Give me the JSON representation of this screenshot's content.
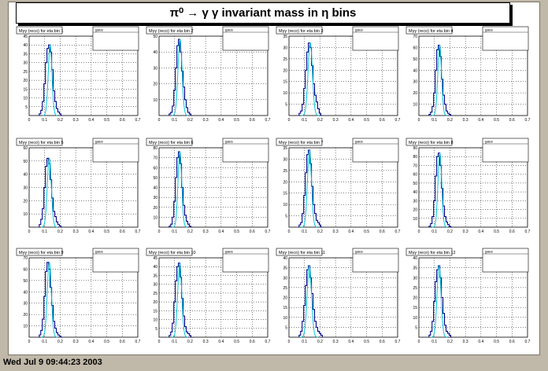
{
  "window": {
    "title": "π⁰ → γ γ invariant mass in η bins",
    "timestamp": "Wed Jul  9 09:44:23 2003",
    "background_color": "#c0b8a8",
    "canvas_color": "#ffffff"
  },
  "colors": {
    "fit_line": "#00c8d8",
    "hist_line": "#00008b",
    "grid": "#000000"
  },
  "chart_data": [
    {
      "type": "line",
      "title": "Mγγ (reco) for eta bin 1",
      "stats_name": "gaus",
      "ylim": [
        0,
        45
      ],
      "xlim": [
        0,
        0.7
      ],
      "yticks": [
        0,
        5,
        10,
        15,
        20,
        25,
        30,
        35,
        40,
        45
      ],
      "xticks": [
        0,
        0.1,
        0.2,
        0.3,
        0.4,
        0.5,
        0.6,
        0.7
      ],
      "peak": 40,
      "mean": 0.135,
      "sigma": 0.012,
      "hist_x": [
        0.07,
        0.08,
        0.09,
        0.1,
        0.11,
        0.12,
        0.13,
        0.14,
        0.15,
        0.16,
        0.17,
        0.18,
        0.19,
        0.2,
        0.21
      ],
      "hist_y": [
        1,
        3,
        8,
        18,
        30,
        38,
        40,
        36,
        26,
        14,
        8,
        4,
        2,
        1,
        0
      ]
    },
    {
      "type": "line",
      "title": "Mγγ (reco) for eta bin 2",
      "stats_name": "gaus",
      "ylim": [
        0,
        50
      ],
      "xlim": [
        0,
        0.7
      ],
      "yticks": [
        0,
        10,
        20,
        30,
        40,
        50
      ],
      "xticks": [
        0,
        0.1,
        0.2,
        0.3,
        0.4,
        0.5,
        0.6,
        0.7
      ],
      "peak": 48,
      "mean": 0.135,
      "sigma": 0.013,
      "hist_x": [
        0.07,
        0.08,
        0.09,
        0.1,
        0.11,
        0.12,
        0.13,
        0.14,
        0.15,
        0.16,
        0.17,
        0.18,
        0.19,
        0.2,
        0.21
      ],
      "hist_y": [
        1,
        2,
        6,
        16,
        30,
        44,
        48,
        40,
        28,
        18,
        10,
        5,
        2,
        1,
        0
      ]
    },
    {
      "type": "line",
      "title": "Mγγ (reco) for eta bin 3",
      "stats_name": "gaus",
      "ylim": [
        0,
        35
      ],
      "xlim": [
        0,
        0.7
      ],
      "yticks": [
        0,
        5,
        10,
        15,
        20,
        25,
        30,
        35
      ],
      "xticks": [
        0,
        0.1,
        0.2,
        0.3,
        0.4,
        0.5,
        0.6,
        0.7
      ],
      "peak": 32,
      "mean": 0.137,
      "sigma": 0.014,
      "hist_x": [
        0.07,
        0.08,
        0.09,
        0.1,
        0.11,
        0.12,
        0.13,
        0.14,
        0.15,
        0.16,
        0.17,
        0.18,
        0.19,
        0.2,
        0.21
      ],
      "hist_y": [
        1,
        2,
        5,
        12,
        20,
        28,
        32,
        30,
        22,
        14,
        9,
        6,
        3,
        1,
        0
      ]
    },
    {
      "type": "line",
      "title": "Mγγ (reco) for eta bin 4",
      "stats_name": "gaus",
      "ylim": [
        0,
        70
      ],
      "xlim": [
        0,
        0.7
      ],
      "yticks": [
        0,
        10,
        20,
        30,
        40,
        50,
        60,
        70
      ],
      "xticks": [
        0,
        0.1,
        0.2,
        0.3,
        0.4,
        0.5,
        0.6,
        0.7
      ],
      "peak": 62,
      "mean": 0.134,
      "sigma": 0.012,
      "hist_x": [
        0.07,
        0.08,
        0.09,
        0.1,
        0.11,
        0.12,
        0.13,
        0.14,
        0.15,
        0.16,
        0.17,
        0.18,
        0.19,
        0.2,
        0.21
      ],
      "hist_y": [
        1,
        3,
        8,
        20,
        40,
        58,
        62,
        52,
        32,
        18,
        10,
        4,
        2,
        1,
        0
      ]
    },
    {
      "type": "line",
      "title": "Mγγ (reco) for eta bin 5",
      "stats_name": "gaus",
      "ylim": [
        0,
        60
      ],
      "xlim": [
        0,
        0.7
      ],
      "yticks": [
        0,
        10,
        20,
        30,
        40,
        50,
        60
      ],
      "xticks": [
        0,
        0.1,
        0.2,
        0.3,
        0.4,
        0.5,
        0.6,
        0.7
      ],
      "peak": 52,
      "mean": 0.13,
      "sigma": 0.013,
      "hist_x": [
        0.07,
        0.08,
        0.09,
        0.1,
        0.11,
        0.12,
        0.13,
        0.14,
        0.15,
        0.16,
        0.17,
        0.18,
        0.19,
        0.2,
        0.21
      ],
      "hist_y": [
        2,
        6,
        14,
        30,
        46,
        52,
        48,
        36,
        22,
        12,
        8,
        4,
        2,
        1,
        0
      ]
    },
    {
      "type": "line",
      "title": "Mγγ (reco) for eta bin 6",
      "stats_name": "gaus",
      "ylim": [
        0,
        80
      ],
      "xlim": [
        0,
        0.7
      ],
      "yticks": [
        0,
        10,
        20,
        30,
        40,
        50,
        60,
        70,
        80
      ],
      "xticks": [
        0,
        0.1,
        0.2,
        0.3,
        0.4,
        0.5,
        0.6,
        0.7
      ],
      "peak": 76,
      "mean": 0.134,
      "sigma": 0.012,
      "hist_x": [
        0.07,
        0.08,
        0.09,
        0.1,
        0.11,
        0.12,
        0.13,
        0.14,
        0.15,
        0.16,
        0.17,
        0.18,
        0.19,
        0.2,
        0.21
      ],
      "hist_y": [
        1,
        3,
        10,
        26,
        50,
        70,
        76,
        64,
        40,
        22,
        12,
        6,
        3,
        1,
        0
      ]
    },
    {
      "type": "line",
      "title": "Mγγ (reco) for eta bin 7",
      "stats_name": "gaus",
      "ylim": [
        0,
        35
      ],
      "xlim": [
        0,
        0.7
      ],
      "yticks": [
        0,
        5,
        10,
        15,
        20,
        25,
        30,
        35
      ],
      "xticks": [
        0,
        0.1,
        0.2,
        0.3,
        0.4,
        0.5,
        0.6,
        0.7
      ],
      "peak": 34,
      "mean": 0.132,
      "sigma": 0.013,
      "hist_x": [
        0.07,
        0.08,
        0.09,
        0.1,
        0.11,
        0.12,
        0.13,
        0.14,
        0.15,
        0.16,
        0.17,
        0.18,
        0.19,
        0.2,
        0.21
      ],
      "hist_y": [
        1,
        2,
        6,
        14,
        24,
        32,
        34,
        28,
        18,
        10,
        6,
        3,
        2,
        1,
        0
      ]
    },
    {
      "type": "line",
      "title": "Mγγ (reco) for eta bin 8",
      "stats_name": "gaus",
      "ylim": [
        0,
        90
      ],
      "xlim": [
        0,
        0.7
      ],
      "yticks": [
        0,
        10,
        20,
        30,
        40,
        50,
        60,
        70,
        80,
        90
      ],
      "xticks": [
        0,
        0.1,
        0.2,
        0.3,
        0.4,
        0.5,
        0.6,
        0.7
      ],
      "peak": 84,
      "mean": 0.135,
      "sigma": 0.012,
      "hist_x": [
        0.07,
        0.08,
        0.09,
        0.1,
        0.11,
        0.12,
        0.13,
        0.14,
        0.15,
        0.16,
        0.17,
        0.18,
        0.19,
        0.2,
        0.21
      ],
      "hist_y": [
        1,
        4,
        12,
        30,
        58,
        80,
        84,
        70,
        44,
        24,
        12,
        6,
        3,
        1,
        0
      ]
    },
    {
      "type": "line",
      "title": "Mγγ (reco) for eta bin 9",
      "stats_name": "gaus",
      "ylim": [
        0,
        70
      ],
      "xlim": [
        0,
        0.7
      ],
      "yticks": [
        0,
        10,
        20,
        30,
        40,
        50,
        60,
        70
      ],
      "xticks": [
        0,
        0.1,
        0.2,
        0.3,
        0.4,
        0.5,
        0.6,
        0.7
      ],
      "peak": 66,
      "mean": 0.13,
      "sigma": 0.013,
      "hist_x": [
        0.07,
        0.08,
        0.09,
        0.1,
        0.11,
        0.12,
        0.13,
        0.14,
        0.15,
        0.16,
        0.17,
        0.18,
        0.19,
        0.2,
        0.21
      ],
      "hist_y": [
        2,
        6,
        16,
        36,
        58,
        66,
        60,
        44,
        28,
        14,
        8,
        4,
        2,
        1,
        0
      ]
    },
    {
      "type": "line",
      "title": "Mγγ (reco) for eta bin 10",
      "stats_name": "gaus",
      "ylim": [
        0,
        45
      ],
      "xlim": [
        0,
        0.7
      ],
      "yticks": [
        0,
        5,
        10,
        15,
        20,
        25,
        30,
        35,
        40,
        45
      ],
      "xticks": [
        0,
        0.1,
        0.2,
        0.3,
        0.4,
        0.5,
        0.6,
        0.7
      ],
      "peak": 42,
      "mean": 0.133,
      "sigma": 0.013,
      "hist_x": [
        0.07,
        0.08,
        0.09,
        0.1,
        0.11,
        0.12,
        0.13,
        0.14,
        0.15,
        0.16,
        0.17,
        0.18,
        0.19,
        0.2,
        0.21
      ],
      "hist_y": [
        1,
        3,
        8,
        20,
        32,
        40,
        42,
        34,
        22,
        12,
        6,
        3,
        2,
        1,
        0
      ]
    },
    {
      "type": "line",
      "title": "Mγγ (reco) for eta bin 11",
      "stats_name": "gaus",
      "ylim": [
        0,
        40
      ],
      "xlim": [
        0,
        0.7
      ],
      "yticks": [
        0,
        5,
        10,
        15,
        20,
        25,
        30,
        35,
        40
      ],
      "xticks": [
        0,
        0.1,
        0.2,
        0.3,
        0.4,
        0.5,
        0.6,
        0.7
      ],
      "peak": 36,
      "mean": 0.131,
      "sigma": 0.014,
      "hist_x": [
        0.07,
        0.08,
        0.09,
        0.1,
        0.11,
        0.12,
        0.13,
        0.14,
        0.15,
        0.16,
        0.17,
        0.18,
        0.19,
        0.2,
        0.21
      ],
      "hist_y": [
        1,
        3,
        8,
        16,
        26,
        34,
        36,
        30,
        22,
        14,
        8,
        5,
        3,
        2,
        1
      ]
    },
    {
      "type": "line",
      "title": "Mγγ (reco) for eta bin 12",
      "stats_name": "gaus",
      "ylim": [
        0,
        40
      ],
      "xlim": [
        0,
        0.7
      ],
      "yticks": [
        0,
        5,
        10,
        15,
        20,
        25,
        30,
        35,
        40
      ],
      "xticks": [
        0,
        0.1,
        0.2,
        0.3,
        0.4,
        0.5,
        0.6,
        0.7
      ],
      "peak": 36,
      "mean": 0.13,
      "sigma": 0.013,
      "hist_x": [
        0.07,
        0.08,
        0.09,
        0.1,
        0.11,
        0.12,
        0.13,
        0.14,
        0.15,
        0.16,
        0.17,
        0.18,
        0.19,
        0.2,
        0.21
      ],
      "hist_y": [
        1,
        3,
        8,
        18,
        28,
        34,
        36,
        30,
        20,
        12,
        6,
        3,
        2,
        1,
        0
      ]
    }
  ]
}
